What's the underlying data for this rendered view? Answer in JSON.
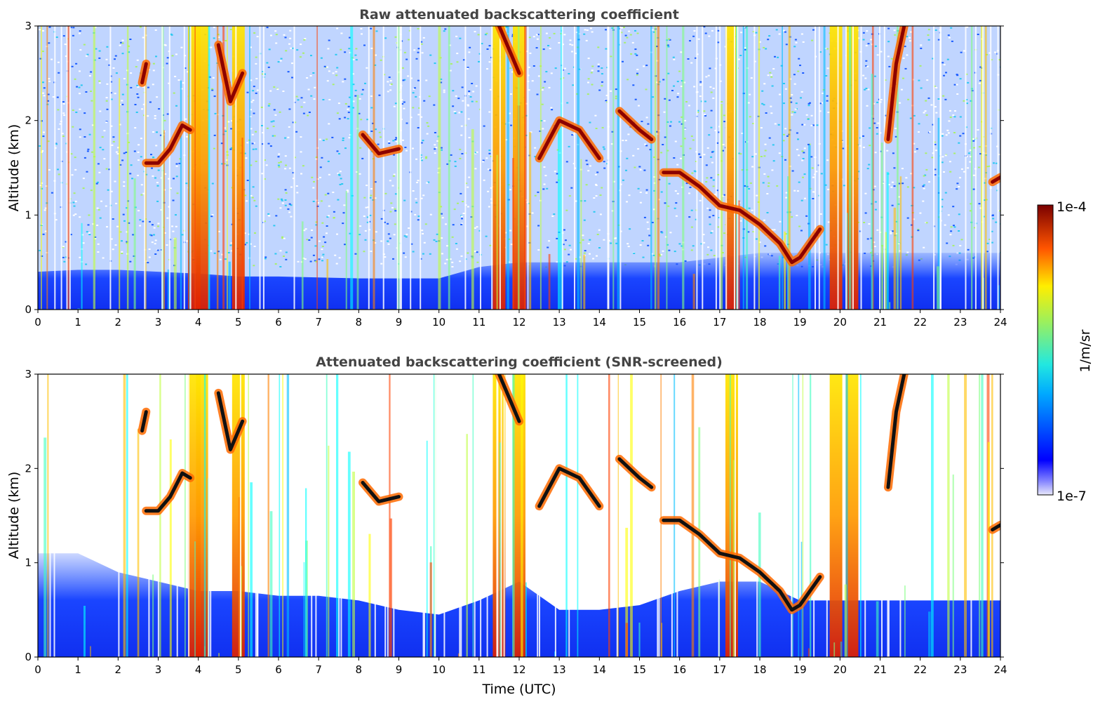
{
  "chart_data": [
    {
      "type": "heatmap",
      "title": "Raw attenuated backscattering coefficient",
      "xlabel": "",
      "ylabel": "Altitude (km)",
      "xlim": [
        0,
        24
      ],
      "ylim": [
        0,
        3
      ],
      "xticks": [
        "0",
        "1",
        "2",
        "3",
        "4",
        "5",
        "6",
        "7",
        "8",
        "9",
        "10",
        "11",
        "12",
        "13",
        "14",
        "15",
        "16",
        "17",
        "18",
        "19",
        "20",
        "21",
        "22",
        "23",
        "24"
      ],
      "yticks": [
        "0",
        "1",
        "2",
        "3"
      ],
      "colorscale": "jet",
      "boundary_layer_top_km": [
        0.4,
        0.42,
        0.42,
        0.4,
        0.38,
        0.35,
        0.35,
        0.34,
        0.33,
        0.33,
        0.33,
        0.45,
        0.5,
        0.5,
        0.5,
        0.5,
        0.5,
        0.55,
        0.6,
        0.6,
        0.6,
        0.6,
        0.6,
        0.6,
        0.6
      ],
      "cloud_layers": [
        {
          "x": [
            2.6,
            2.7
          ],
          "y": [
            2.4,
            2.6
          ]
        },
        {
          "x": [
            2.7,
            3.0,
            3.3,
            3.6,
            3.8
          ],
          "y": [
            1.55,
            1.55,
            1.7,
            1.95,
            1.9
          ]
        },
        {
          "x": [
            4.5,
            4.8,
            5.1
          ],
          "y": [
            2.8,
            2.2,
            2.5
          ]
        },
        {
          "x": [
            8.1,
            8.5,
            9.0
          ],
          "y": [
            1.85,
            1.65,
            1.7
          ]
        },
        {
          "x": [
            11.5,
            11.8,
            12.0
          ],
          "y": [
            3.0,
            2.7,
            2.5
          ]
        },
        {
          "x": [
            12.5,
            13.0,
            13.5,
            14.0
          ],
          "y": [
            1.6,
            2.0,
            1.9,
            1.6
          ]
        },
        {
          "x": [
            14.5,
            15.0,
            15.3
          ],
          "y": [
            2.1,
            1.9,
            1.8
          ]
        },
        {
          "x": [
            15.6,
            16.0,
            16.5,
            17.0,
            17.5,
            18.0,
            18.5,
            18.8,
            19.0,
            19.5
          ],
          "y": [
            1.45,
            1.45,
            1.3,
            1.1,
            1.05,
            0.9,
            0.7,
            0.5,
            0.55,
            0.85
          ]
        },
        {
          "x": [
            21.2,
            21.4,
            21.6
          ],
          "y": [
            1.8,
            2.6,
            3.0
          ]
        },
        {
          "x": [
            23.8,
            24.0
          ],
          "y": [
            1.35,
            1.4
          ]
        }
      ],
      "precipitation_columns_utc": [
        3.9,
        4.1,
        5.0,
        11.5,
        12.0,
        17.3,
        19.9,
        20.3
      ]
    },
    {
      "type": "heatmap",
      "title": "Attenuated backscattering coefficient (SNR-screened)",
      "xlabel": "Time (UTC)",
      "ylabel": "Altitude (km)",
      "xlim": [
        0,
        24
      ],
      "ylim": [
        0,
        3
      ],
      "xticks": [
        "0",
        "1",
        "2",
        "3",
        "4",
        "5",
        "6",
        "7",
        "8",
        "9",
        "10",
        "11",
        "12",
        "13",
        "14",
        "15",
        "16",
        "17",
        "18",
        "19",
        "20",
        "21",
        "22",
        "23",
        "24"
      ],
      "yticks": [
        "0",
        "1",
        "2",
        "3"
      ],
      "colorscale": "jet",
      "boundary_layer_top_km": [
        1.1,
        1.1,
        0.9,
        0.8,
        0.7,
        0.7,
        0.65,
        0.65,
        0.6,
        0.5,
        0.45,
        0.6,
        0.8,
        0.5,
        0.5,
        0.55,
        0.7,
        0.8,
        0.8,
        0.6,
        0.6,
        0.6,
        0.6,
        0.6,
        0.6
      ],
      "cloud_layers": [
        {
          "x": [
            2.6,
            2.7
          ],
          "y": [
            2.4,
            2.6
          ]
        },
        {
          "x": [
            2.7,
            3.0,
            3.3,
            3.6,
            3.8
          ],
          "y": [
            1.55,
            1.55,
            1.7,
            1.95,
            1.9
          ]
        },
        {
          "x": [
            4.5,
            4.8,
            5.1
          ],
          "y": [
            2.8,
            2.2,
            2.5
          ]
        },
        {
          "x": [
            8.1,
            8.5,
            9.0
          ],
          "y": [
            1.85,
            1.65,
            1.7
          ]
        },
        {
          "x": [
            11.5,
            11.8,
            12.0
          ],
          "y": [
            3.0,
            2.7,
            2.5
          ]
        },
        {
          "x": [
            12.5,
            13.0,
            13.5,
            14.0
          ],
          "y": [
            1.6,
            2.0,
            1.9,
            1.6
          ]
        },
        {
          "x": [
            14.5,
            15.0,
            15.3
          ],
          "y": [
            2.1,
            1.9,
            1.8
          ]
        },
        {
          "x": [
            15.6,
            16.0,
            16.5,
            17.0,
            17.5,
            18.0,
            18.5,
            18.8,
            19.0,
            19.5
          ],
          "y": [
            1.45,
            1.45,
            1.3,
            1.1,
            1.05,
            0.9,
            0.7,
            0.5,
            0.55,
            0.85
          ]
        },
        {
          "x": [
            21.2,
            21.4,
            21.6
          ],
          "y": [
            1.8,
            2.6,
            3.0
          ]
        },
        {
          "x": [
            23.8,
            24.0
          ],
          "y": [
            1.35,
            1.4
          ]
        }
      ],
      "precipitation_columns_utc": [
        3.9,
        4.1,
        5.0,
        11.5,
        12.0,
        17.3,
        19.9,
        20.3
      ]
    }
  ],
  "colorbar": {
    "label": "1/m/sr",
    "max_label": "1e-4",
    "min_label": "1e-7",
    "scale": "log",
    "range": [
      1e-07,
      0.0001
    ]
  }
}
